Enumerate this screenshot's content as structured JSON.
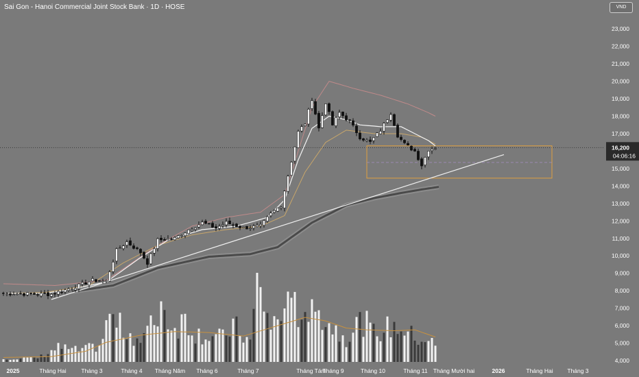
{
  "header": {
    "title": "Sai Gon - Hanoi Commercial Joint Stock Bank · 1D · HOSE",
    "currency": "VND"
  },
  "colors": {
    "background": "#7a7a7a",
    "candle": "#111111",
    "volume": "#f2f2f2",
    "ma_white": "#f4f4f4",
    "ma_tan": "#c8a66a",
    "ma_pink": "#c08a8a",
    "ma_slow": "#4a4a4a",
    "trendline": "#f0f0f0",
    "box": "#e0a040",
    "volume_ma": "#c8913e"
  },
  "chart_data": {
    "type": "candlestick",
    "title": "Sai Gon - Hanoi Commercial Joint Stock Bank · 1D · HOSE",
    "y_axis": {
      "range": [
        3800,
        24000
      ],
      "ticks": [
        "23,000",
        "22,000",
        "21,000",
        "20,000",
        "19,000",
        "18,000",
        "17,000",
        "16,000",
        "15,000",
        "14,000",
        "13,000",
        "12,000",
        "11,000",
        "10,000",
        "9,000",
        "8,000",
        "7,000",
        "6,000",
        "5,000",
        "4,000"
      ],
      "currency": "VND"
    },
    "x_axis": {
      "labels": [
        {
          "text": "2025",
          "bold": true
        },
        {
          "text": "Tháng Hai",
          "bold": false
        },
        {
          "text": "Tháng 3",
          "bold": false
        },
        {
          "text": "Tháng 4",
          "bold": false
        },
        {
          "text": "Tháng Năm",
          "bold": false
        },
        {
          "text": "Tháng 6",
          "bold": false
        },
        {
          "text": "Tháng 7",
          "bold": false
        },
        {
          "text": "Tháng Tám",
          "bold": false
        },
        {
          "text": "Tháng 9",
          "bold": false
        },
        {
          "text": "Tháng 10",
          "bold": false
        },
        {
          "text": "Tháng 11",
          "bold": false
        },
        {
          "text": "Tháng Mười hai",
          "bold": false
        },
        {
          "text": "2026",
          "bold": true
        },
        {
          "text": "Tháng Hai",
          "bold": false
        },
        {
          "text": "Tháng 3",
          "bold": false
        }
      ]
    },
    "last_price": {
      "value": 16200,
      "label": "16,200",
      "countdown": "04:06:16"
    },
    "price_anchors": [
      [
        0,
        7850
      ],
      [
        10,
        7800
      ],
      [
        14,
        7800
      ],
      [
        22,
        8300
      ],
      [
        26,
        8600
      ],
      [
        30,
        8550
      ],
      [
        33,
        10300
      ],
      [
        36,
        10800
      ],
      [
        40,
        10200
      ],
      [
        42,
        9600
      ],
      [
        45,
        10900
      ],
      [
        50,
        11000
      ],
      [
        54,
        11500
      ],
      [
        58,
        11900
      ],
      [
        62,
        11600
      ],
      [
        65,
        11900
      ],
      [
        70,
        11600
      ],
      [
        75,
        11700
      ],
      [
        78,
        12400
      ],
      [
        81,
        12900
      ],
      [
        83,
        14600
      ],
      [
        86,
        17100
      ],
      [
        88,
        17600
      ],
      [
        90,
        19000
      ],
      [
        92,
        17300
      ],
      [
        94,
        18800
      ],
      [
        96,
        17500
      ],
      [
        98,
        18200
      ],
      [
        101,
        17700
      ],
      [
        104,
        16800
      ],
      [
        107,
        16500
      ],
      [
        110,
        17200
      ],
      [
        113,
        18200
      ],
      [
        115,
        16900
      ],
      [
        117,
        16400
      ],
      [
        120,
        16000
      ],
      [
        122,
        15200
      ],
      [
        124,
        16100
      ],
      [
        126,
        16200
      ]
    ],
    "indicators": {
      "ma_white": [
        [
          0,
          7850
        ],
        [
          12,
          7850
        ],
        [
          20,
          8100
        ],
        [
          30,
          8500
        ],
        [
          40,
          9900
        ],
        [
          48,
          10900
        ],
        [
          58,
          11500
        ],
        [
          68,
          11700
        ],
        [
          77,
          12200
        ],
        [
          82,
          13200
        ],
        [
          86,
          15500
        ],
        [
          90,
          17300
        ],
        [
          95,
          18000
        ],
        [
          100,
          17800
        ],
        [
          104,
          17500
        ],
        [
          110,
          17400
        ],
        [
          116,
          17400
        ],
        [
          120,
          17000
        ],
        [
          124,
          16600
        ],
        [
          126,
          16300
        ]
      ],
      "ma_tan": [
        [
          0,
          7850
        ],
        [
          12,
          7900
        ],
        [
          25,
          8300
        ],
        [
          35,
          9600
        ],
        [
          45,
          10600
        ],
        [
          55,
          11200
        ],
        [
          65,
          11500
        ],
        [
          75,
          11700
        ],
        [
          82,
          12300
        ],
        [
          88,
          14800
        ],
        [
          94,
          16500
        ],
        [
          100,
          17200
        ],
        [
          108,
          17000
        ],
        [
          116,
          17000
        ],
        [
          122,
          16800
        ],
        [
          126,
          16400
        ]
      ],
      "ma_pink": [
        [
          0,
          8400
        ],
        [
          15,
          8300
        ],
        [
          30,
          8600
        ],
        [
          45,
          10600
        ],
        [
          55,
          11700
        ],
        [
          65,
          12200
        ],
        [
          75,
          12500
        ],
        [
          82,
          13500
        ],
        [
          90,
          18500
        ],
        [
          95,
          20000
        ],
        [
          102,
          19600
        ],
        [
          110,
          19200
        ],
        [
          118,
          18700
        ],
        [
          124,
          18200
        ],
        [
          126,
          18000
        ]
      ],
      "ma_slow": [
        [
          20,
          7950
        ],
        [
          32,
          8300
        ],
        [
          45,
          9300
        ],
        [
          60,
          9950
        ],
        [
          72,
          10100
        ],
        [
          80,
          10500
        ],
        [
          90,
          11900
        ],
        [
          100,
          12900
        ],
        [
          108,
          13300
        ],
        [
          116,
          13600
        ],
        [
          122,
          13800
        ],
        [
          127,
          13950
        ]
      ]
    },
    "trendline": {
      "from": [
        14,
        7500
      ],
      "to": [
        146,
        15800
      ]
    },
    "zone_box": {
      "from_index": 106,
      "to_index": 160,
      "top": 16300,
      "bottom": 14450,
      "mid": 15350
    },
    "volume_max": 5000,
    "volume_anchors": [
      [
        0,
        200
      ],
      [
        10,
        250
      ],
      [
        16,
        900
      ],
      [
        22,
        700
      ],
      [
        28,
        1000
      ],
      [
        31,
        2700
      ],
      [
        36,
        1900
      ],
      [
        40,
        1300
      ],
      [
        44,
        2500
      ],
      [
        46,
        3400
      ],
      [
        50,
        2100
      ],
      [
        53,
        2700
      ],
      [
        56,
        1800
      ],
      [
        64,
        1500
      ],
      [
        67,
        2300
      ],
      [
        72,
        1200
      ],
      [
        74,
        5000
      ],
      [
        78,
        2200
      ],
      [
        82,
        3000
      ],
      [
        84,
        3600
      ],
      [
        88,
        2800
      ],
      [
        92,
        2900
      ],
      [
        96,
        2200
      ],
      [
        100,
        1500
      ],
      [
        104,
        2800
      ],
      [
        108,
        1800
      ],
      [
        112,
        2100
      ],
      [
        116,
        2200
      ],
      [
        120,
        1500
      ],
      [
        124,
        1400
      ],
      [
        126,
        1000
      ]
    ],
    "volume_ma": [
      [
        0,
        250
      ],
      [
        14,
        300
      ],
      [
        24,
        600
      ],
      [
        30,
        1100
      ],
      [
        40,
        1500
      ],
      [
        50,
        1700
      ],
      [
        60,
        1650
      ],
      [
        70,
        1450
      ],
      [
        76,
        1800
      ],
      [
        82,
        2150
      ],
      [
        88,
        2500
      ],
      [
        94,
        2300
      ],
      [
        100,
        1900
      ],
      [
        106,
        1800
      ],
      [
        114,
        1750
      ],
      [
        120,
        1800
      ],
      [
        126,
        1400
      ]
    ]
  }
}
